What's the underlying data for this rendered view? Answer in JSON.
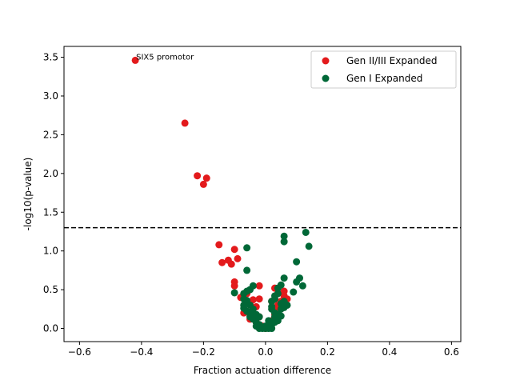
{
  "chart_data": {
    "type": "scatter",
    "title": "",
    "xlabel": "Fraction actuation difference",
    "ylabel": "-log10(p-value)",
    "xlim": [
      -0.65,
      0.63
    ],
    "ylim": [
      -0.17,
      3.64
    ],
    "xticks": [
      -0.6,
      -0.4,
      -0.2,
      0.0,
      0.2,
      0.4,
      0.6
    ],
    "xtick_labels": [
      "−0.6",
      "−0.4",
      "−0.2",
      "0.0",
      "0.2",
      "0.4",
      "0.6"
    ],
    "yticks": [
      0.0,
      0.5,
      1.0,
      1.5,
      2.0,
      2.5,
      3.0,
      3.5
    ],
    "ytick_labels": [
      "0.0",
      "0.5",
      "1.0",
      "1.5",
      "2.0",
      "2.5",
      "3.0",
      "3.5"
    ],
    "grid": false,
    "legend_position": "upper right",
    "threshold": {
      "y": 1.3,
      "style": "dashed",
      "color": "#000000"
    },
    "annotations": [
      {
        "text": "SIX5 promotor",
        "x": -0.42,
        "y": 3.46
      }
    ],
    "series": [
      {
        "name": "Gen II/III Expanded",
        "color": "#e31a1c",
        "points": [
          [
            -0.42,
            3.46
          ],
          [
            -0.26,
            2.65
          ],
          [
            -0.22,
            1.97
          ],
          [
            -0.19,
            1.94
          ],
          [
            -0.2,
            1.86
          ],
          [
            -0.15,
            1.08
          ],
          [
            -0.1,
            1.02
          ],
          [
            -0.09,
            0.9
          ],
          [
            -0.12,
            0.88
          ],
          [
            -0.14,
            0.85
          ],
          [
            -0.11,
            0.83
          ],
          [
            -0.1,
            0.6
          ],
          [
            -0.1,
            0.55
          ],
          [
            -0.06,
            0.45
          ],
          [
            -0.02,
            0.55
          ],
          [
            -0.08,
            0.4
          ],
          [
            -0.04,
            0.37
          ],
          [
            -0.02,
            0.38
          ],
          [
            -0.05,
            0.32
          ],
          [
            -0.03,
            0.28
          ],
          [
            -0.06,
            0.22
          ],
          [
            -0.04,
            0.18
          ],
          [
            -0.02,
            0.15
          ],
          [
            -0.03,
            0.08
          ],
          [
            -0.01,
            0.03
          ],
          [
            0.0,
            0.0
          ],
          [
            0.01,
            0.02
          ],
          [
            0.02,
            0.05
          ],
          [
            0.02,
            0.1
          ],
          [
            0.03,
            0.52
          ],
          [
            0.04,
            0.45
          ],
          [
            0.06,
            0.48
          ],
          [
            0.06,
            0.42
          ],
          [
            0.05,
            0.35
          ],
          [
            0.04,
            0.3
          ],
          [
            0.03,
            0.25
          ],
          [
            0.03,
            0.18
          ],
          [
            -0.05,
            0.12
          ],
          [
            0.07,
            0.38
          ],
          [
            0.06,
            0.3
          ],
          [
            -0.07,
            0.2
          ],
          [
            0.02,
            0.35
          ]
        ]
      },
      {
        "name": "Gen I Expanded",
        "color": "#006837",
        "points": [
          [
            0.13,
            1.24
          ],
          [
            0.06,
            1.19
          ],
          [
            0.14,
            1.06
          ],
          [
            0.06,
            1.12
          ],
          [
            -0.06,
            1.04
          ],
          [
            0.1,
            0.86
          ],
          [
            -0.06,
            0.75
          ],
          [
            0.06,
            0.65
          ],
          [
            0.11,
            0.65
          ],
          [
            0.1,
            0.6
          ],
          [
            0.12,
            0.55
          ],
          [
            0.05,
            0.56
          ],
          [
            -0.04,
            0.55
          ],
          [
            -0.05,
            0.5
          ],
          [
            0.04,
            0.52
          ],
          [
            0.09,
            0.47
          ],
          [
            -0.06,
            0.48
          ],
          [
            -0.07,
            0.45
          ],
          [
            -0.1,
            0.46
          ],
          [
            0.04,
            0.45
          ],
          [
            0.03,
            0.42
          ],
          [
            -0.07,
            0.38
          ],
          [
            -0.06,
            0.36
          ],
          [
            0.06,
            0.35
          ],
          [
            0.05,
            0.32
          ],
          [
            0.07,
            0.3
          ],
          [
            -0.07,
            0.3
          ],
          [
            -0.07,
            0.26
          ],
          [
            -0.04,
            0.25
          ],
          [
            0.02,
            0.25
          ],
          [
            0.05,
            0.25
          ],
          [
            0.06,
            0.27
          ],
          [
            -0.05,
            0.2
          ],
          [
            -0.06,
            0.22
          ],
          [
            0.03,
            0.2
          ],
          [
            0.04,
            0.18
          ],
          [
            0.05,
            0.16
          ],
          [
            -0.05,
            0.15
          ],
          [
            -0.04,
            0.12
          ],
          [
            0.03,
            0.15
          ],
          [
            0.04,
            0.1
          ],
          [
            -0.03,
            0.08
          ],
          [
            0.03,
            0.08
          ],
          [
            -0.02,
            0.05
          ],
          [
            0.02,
            0.05
          ],
          [
            -0.01,
            0.0
          ],
          [
            0.0,
            0.0
          ],
          [
            0.01,
            0.0
          ],
          [
            -0.02,
            0.0
          ],
          [
            0.02,
            0.0
          ],
          [
            0.0,
            0.03
          ],
          [
            -0.01,
            0.02
          ],
          [
            0.01,
            0.02
          ],
          [
            -0.03,
            0.03
          ],
          [
            0.03,
            0.12
          ],
          [
            -0.03,
            0.18
          ],
          [
            0.02,
            0.28
          ],
          [
            -0.05,
            0.3
          ],
          [
            0.02,
            0.35
          ],
          [
            0.03,
            0.38
          ],
          [
            -0.02,
            0.15
          ],
          [
            0.01,
            0.1
          ]
        ]
      }
    ]
  }
}
